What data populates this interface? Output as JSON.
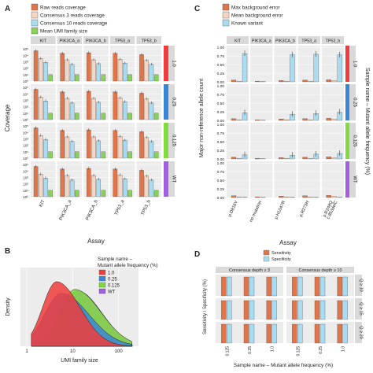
{
  "figure": {
    "panel_letters": [
      "A",
      "B",
      "C",
      "D"
    ]
  },
  "colors": {
    "raw": "#e0754a",
    "c3": "#f4d6c4",
    "c10": "#a9dcf0",
    "umi": "#8bd05c",
    "max_err": "#e0754a",
    "mean_err": "#f4d6c4",
    "known": "#a9dcf0",
    "s10": "#f03c3c",
    "s025": "#3a86d6",
    "s0125": "#7fdc3c",
    "swt": "#a35fe0",
    "sens": "#e0754a",
    "spec": "#a9dcf0",
    "strip": "#d9d9d9"
  },
  "chart_data": [
    {
      "panel": "A",
      "type": "bar",
      "legend": [
        "Raw reads coverage",
        "Consensus 3 reads coverage",
        "Consensus 10 reads coverage",
        "Mean UMI family size"
      ],
      "categories": [
        "KIT",
        "PIK3CA_a",
        "PIK3CA_b",
        "TP53_a",
        "TP53_b"
      ],
      "row_strips": [
        "1.0",
        "0.25",
        "0.125",
        "WT"
      ],
      "ylabel": "Coverage",
      "xlabel": "Assay",
      "y_scale": "log",
      "y_ticks": [
        "10⁰",
        "10¹",
        "10²",
        "10³",
        "10⁴",
        "10⁵"
      ],
      "ylim_log10": [
        0,
        5.5
      ],
      "log10_values": {
        "raw": [
          4.7,
          4.3,
          4.4,
          4.3,
          4.1
        ],
        "c3": [
          3.5,
          3.3,
          3.3,
          3.4,
          3.2
        ],
        "c10": [
          2.9,
          2.6,
          2.7,
          2.8,
          2.6
        ],
        "umi": [
          1.0,
          1.0,
          1.0,
          1.0,
          1.0
        ]
      }
    },
    {
      "panel": "B",
      "type": "area",
      "legend_title": "Sample name –\nMutant allele frequency (%)",
      "legend": [
        "1.0",
        "0.25",
        "0.125",
        "WT"
      ],
      "xlabel": "UMI family size",
      "ylabel": "Density",
      "x_scale": "log",
      "x_ticks": [
        1,
        10,
        100
      ],
      "series": [
        {
          "name": "1.0",
          "peak_log10": 0.65,
          "width": 0.38,
          "height": 1.0
        },
        {
          "name": "0.25",
          "peak_log10": 0.75,
          "width": 0.45,
          "height": 0.82
        },
        {
          "name": "0.125",
          "peak_log10": 1.05,
          "width": 0.42,
          "height": 0.88
        },
        {
          "name": "WT",
          "peak_log10": 1.1,
          "width": 0.4,
          "height": 0.86
        }
      ]
    },
    {
      "panel": "C",
      "type": "bar",
      "legend": [
        "Max background error",
        "Mean background error",
        "Known variant"
      ],
      "categories": [
        "KIT",
        "PIK3CA_a",
        "PIK3CA_b",
        "TP53_a",
        "TP53_b"
      ],
      "x_tick_labels": [
        "p.D816V",
        "no mutation",
        "p.H1047R",
        "p.R273H",
        "p.R248Q\nc.853delC"
      ],
      "row_strips": [
        "1.0",
        "0.25",
        "0.125",
        "WT"
      ],
      "ylabel": "Major non-reference allele count",
      "xlabel": "Assay",
      "right_label": "Sample name – Mutant allele frequency (%)",
      "y_ticks": [
        "0.00",
        "0.25",
        "0.50",
        "0.75",
        "1.00"
      ],
      "ylim": [
        0,
        1.05
      ],
      "values": {
        "1.0": {
          "max": [
            0.05,
            0.02,
            0.04,
            0.05,
            0.06
          ],
          "mean": [
            0.02,
            0.01,
            0.02,
            0.02,
            0.03
          ],
          "known": [
            0.82,
            0.0,
            0.78,
            0.8,
            0.78
          ]
        },
        "0.25": {
          "max": [
            0.05,
            0.02,
            0.04,
            0.05,
            0.06
          ],
          "mean": [
            0.02,
            0.01,
            0.02,
            0.02,
            0.03
          ],
          "known": [
            0.22,
            0.0,
            0.18,
            0.2,
            0.24
          ]
        },
        "0.125": {
          "max": [
            0.05,
            0.02,
            0.04,
            0.05,
            0.06
          ],
          "mean": [
            0.02,
            0.01,
            0.02,
            0.02,
            0.03
          ],
          "known": [
            0.12,
            0.0,
            0.11,
            0.14,
            0.16
          ]
        },
        "WT": {
          "max": [
            0.05,
            0.02,
            0.04,
            0.05,
            0.06
          ],
          "mean": [
            0.02,
            0.01,
            0.02,
            0.02,
            0.03
          ],
          "known": [
            0.01,
            0.0,
            0.01,
            0.01,
            0.01
          ]
        }
      }
    },
    {
      "panel": "D",
      "type": "bar",
      "legend": [
        "Sensitivity",
        "Specificity"
      ],
      "col_strips": [
        "Consensus depth ≥ 3",
        "Consensus depth ≥ 10"
      ],
      "row_strips": [
        "Q ≥ 10",
        "Q ≥ 15",
        "Q ≥ 20"
      ],
      "categories": [
        "0.125",
        "0.25",
        "1.0"
      ],
      "ylabel": "Sensitivity / Specificity (%)",
      "xlabel": "Sample name – Mutant allele frequency (%)",
      "ylim": [
        0,
        100
      ],
      "sensitivity": [
        100,
        100,
        100
      ],
      "specificity": [
        100,
        100,
        100
      ]
    }
  ]
}
